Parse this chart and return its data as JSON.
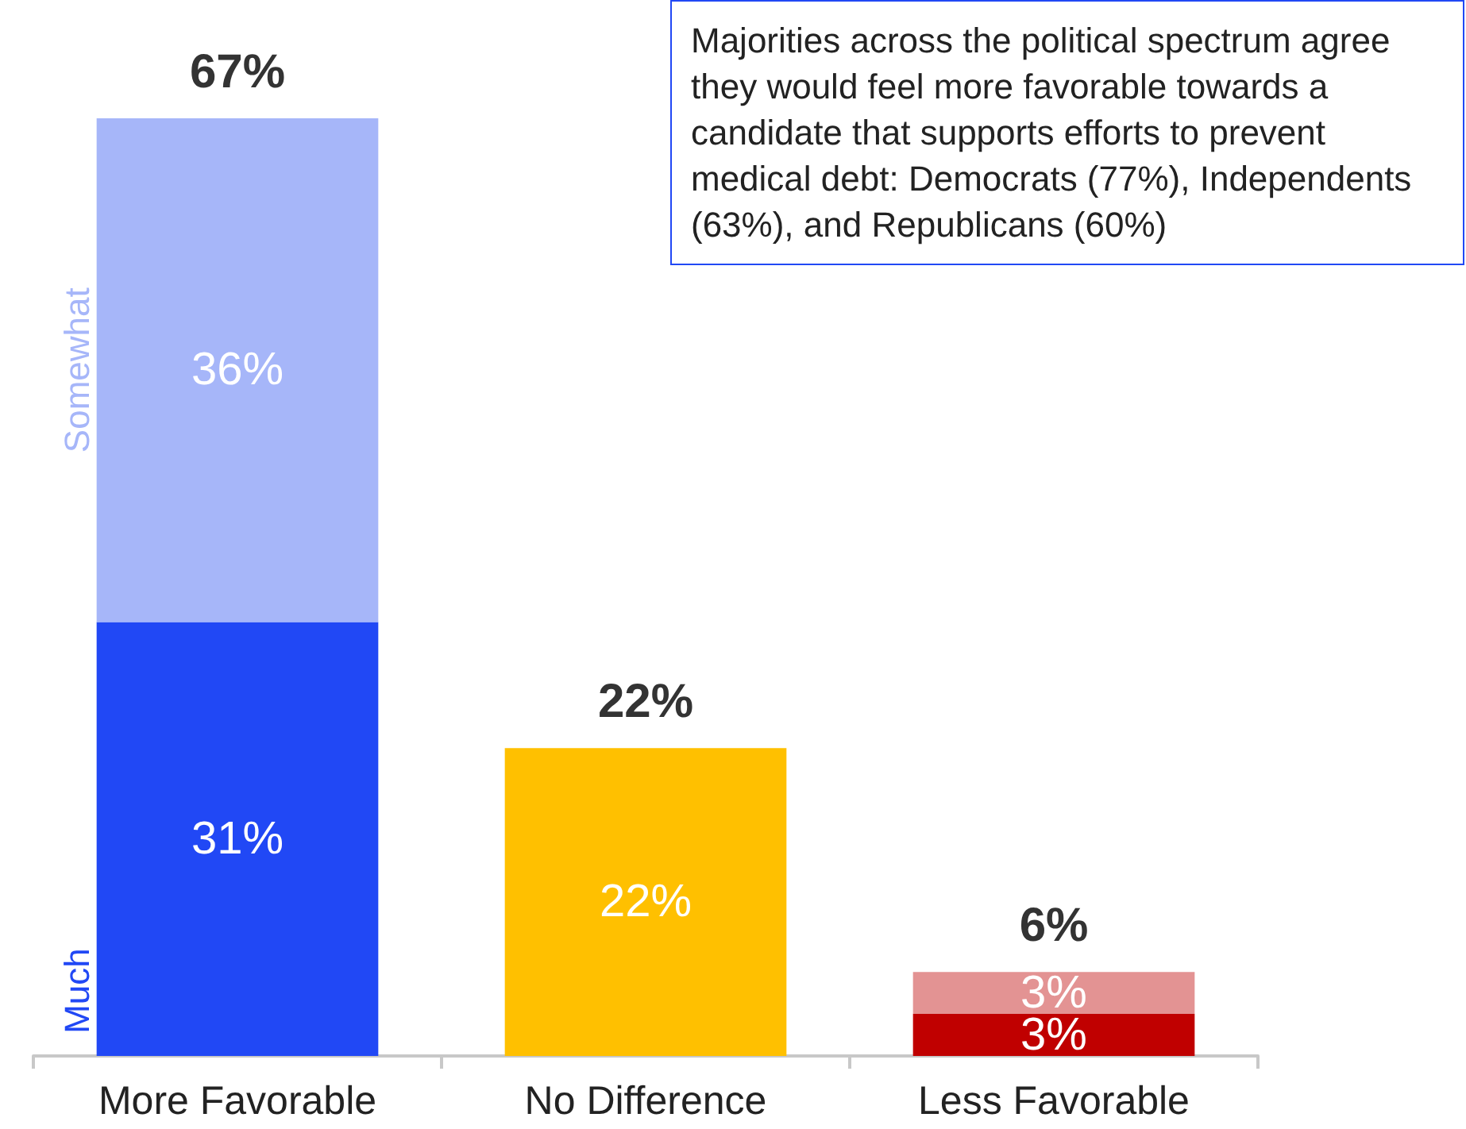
{
  "chart_data": {
    "type": "bar",
    "stacked": true,
    "categories": [
      "More Favorable",
      "No Difference",
      "Less Favorable"
    ],
    "series": [
      {
        "name": "Much",
        "color": "#2148f5",
        "colors": [
          "#2148f5",
          "#ffc000",
          "#c00000"
        ],
        "values": [
          31,
          22,
          3
        ],
        "value_labels": [
          "31%",
          "22%",
          "3%"
        ]
      },
      {
        "name": "Somewhat",
        "color": "#a6b6f9",
        "colors": [
          "#a6b6f9",
          null,
          "#e39393"
        ],
        "values": [
          36,
          null,
          3
        ],
        "value_labels": [
          "36%",
          null,
          "3%"
        ]
      }
    ],
    "totals": [
      "67%",
      "22%",
      "6%"
    ],
    "annotations": [
      "Majorities across the political spectrum agree they would feel more favorable towards a candidate that supports efforts to prevent medical debt: Democrats (77%), Independents (63%), and Republicans (60%)"
    ]
  }
}
